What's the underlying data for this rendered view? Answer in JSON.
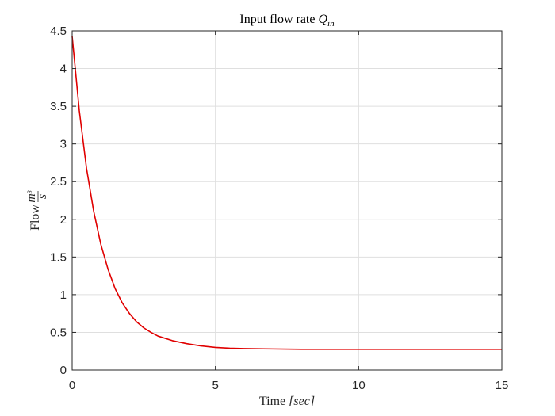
{
  "chart_data": {
    "type": "line",
    "title": {
      "text": "Input flow rate ",
      "math": "Q",
      "subscript": "in"
    },
    "xlabel": {
      "text": "Time ",
      "math": "[sec]"
    },
    "ylabel": {
      "text": "Flow ",
      "numerator": "m",
      "exponent": "3",
      "denominator": "s"
    },
    "xlim": [
      0,
      15
    ],
    "ylim": [
      0,
      4.5
    ],
    "xticks": [
      0,
      5,
      10,
      15
    ],
    "xtick_labels": [
      "0",
      "5",
      "10",
      "15"
    ],
    "yticks": [
      0,
      0.5,
      1,
      1.5,
      2,
      2.5,
      3,
      3.5,
      4,
      4.5
    ],
    "ytick_labels": [
      "0",
      "0.5",
      "1",
      "1.5",
      "2",
      "2.5",
      "3",
      "3.5",
      "4",
      "4.5"
    ],
    "grid": true,
    "series": [
      {
        "color": "#e00000",
        "x": [
          0,
          0.25,
          0.5,
          0.75,
          1,
          1.25,
          1.5,
          1.75,
          2,
          2.25,
          2.5,
          2.75,
          3,
          3.5,
          4,
          4.5,
          5,
          5.5,
          6,
          7,
          8,
          9,
          10,
          11,
          12,
          13,
          14,
          15
        ],
        "y": [
          4.43,
          3.44,
          2.68,
          2.11,
          1.67,
          1.34,
          1.08,
          0.89,
          0.75,
          0.64,
          0.56,
          0.5,
          0.45,
          0.39,
          0.35,
          0.32,
          0.3,
          0.29,
          0.285,
          0.28,
          0.275,
          0.275,
          0.275,
          0.275,
          0.275,
          0.275,
          0.275,
          0.275
        ]
      }
    ]
  }
}
